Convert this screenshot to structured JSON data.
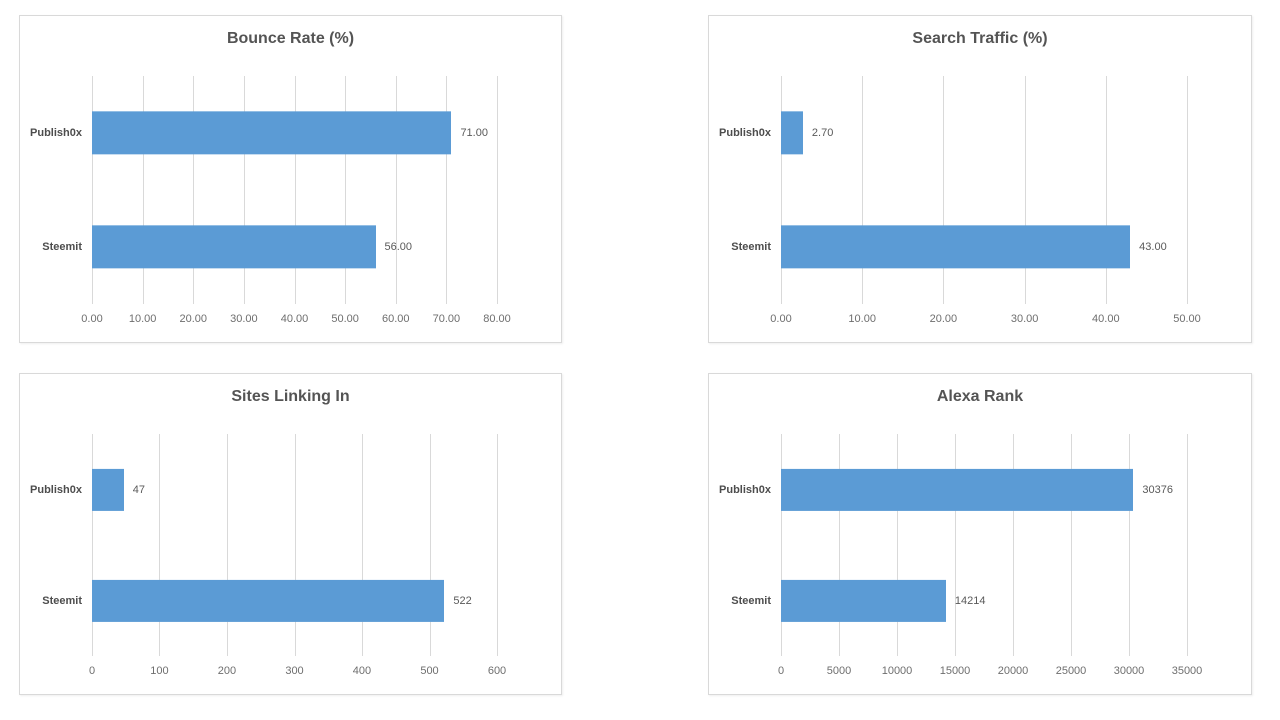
{
  "style": {
    "bar_color": "#5B9BD5",
    "gridline_color": "#D9D9D9",
    "panel_border_color": "#D9D9D9",
    "title_color": "#545454",
    "category_label_color": "#4D4D4D",
    "tick_label_color": "#6E6E6E",
    "value_label_color": "#595959",
    "background_color": "#FFFFFF"
  },
  "chart_data": [
    {
      "type": "bar",
      "orientation": "horizontal",
      "title": "Bounce Rate (%)",
      "categories": [
        "Publish0x",
        "Steemit"
      ],
      "values": [
        71,
        56
      ],
      "data_labels": [
        "71.00",
        "56.00"
      ],
      "xlim": [
        0,
        80
      ],
      "x_tick_labels": [
        "0.00",
        "10.00",
        "20.00",
        "30.00",
        "40.00",
        "50.00",
        "60.00",
        "70.00",
        "80.00"
      ],
      "grid": true,
      "legend": false
    },
    {
      "type": "bar",
      "orientation": "horizontal",
      "title": "Search Traffic (%)",
      "categories": [
        "Publish0x",
        "Steemit"
      ],
      "values": [
        2.7,
        43
      ],
      "data_labels": [
        "2.70",
        "43.00"
      ],
      "xlim": [
        0,
        50
      ],
      "x_tick_labels": [
        "0.00",
        "10.00",
        "20.00",
        "30.00",
        "40.00",
        "50.00"
      ],
      "grid": true,
      "legend": false
    },
    {
      "type": "bar",
      "orientation": "horizontal",
      "title": "Sites Linking In",
      "categories": [
        "Publish0x",
        "Steemit"
      ],
      "values": [
        47,
        522
      ],
      "data_labels": [
        "47",
        "522"
      ],
      "xlim": [
        0,
        600
      ],
      "x_tick_labels": [
        "0",
        "100",
        "200",
        "300",
        "400",
        "500",
        "600"
      ],
      "grid": true,
      "legend": false
    },
    {
      "type": "bar",
      "orientation": "horizontal",
      "title": "Alexa Rank",
      "categories": [
        "Publish0x",
        "Steemit"
      ],
      "values": [
        30376,
        14214
      ],
      "data_labels": [
        "30376",
        "14214"
      ],
      "xlim": [
        0,
        35000
      ],
      "x_tick_labels": [
        "0",
        "5000",
        "10000",
        "15000",
        "20000",
        "25000",
        "30000",
        "35000"
      ],
      "grid": true,
      "legend": false
    }
  ]
}
